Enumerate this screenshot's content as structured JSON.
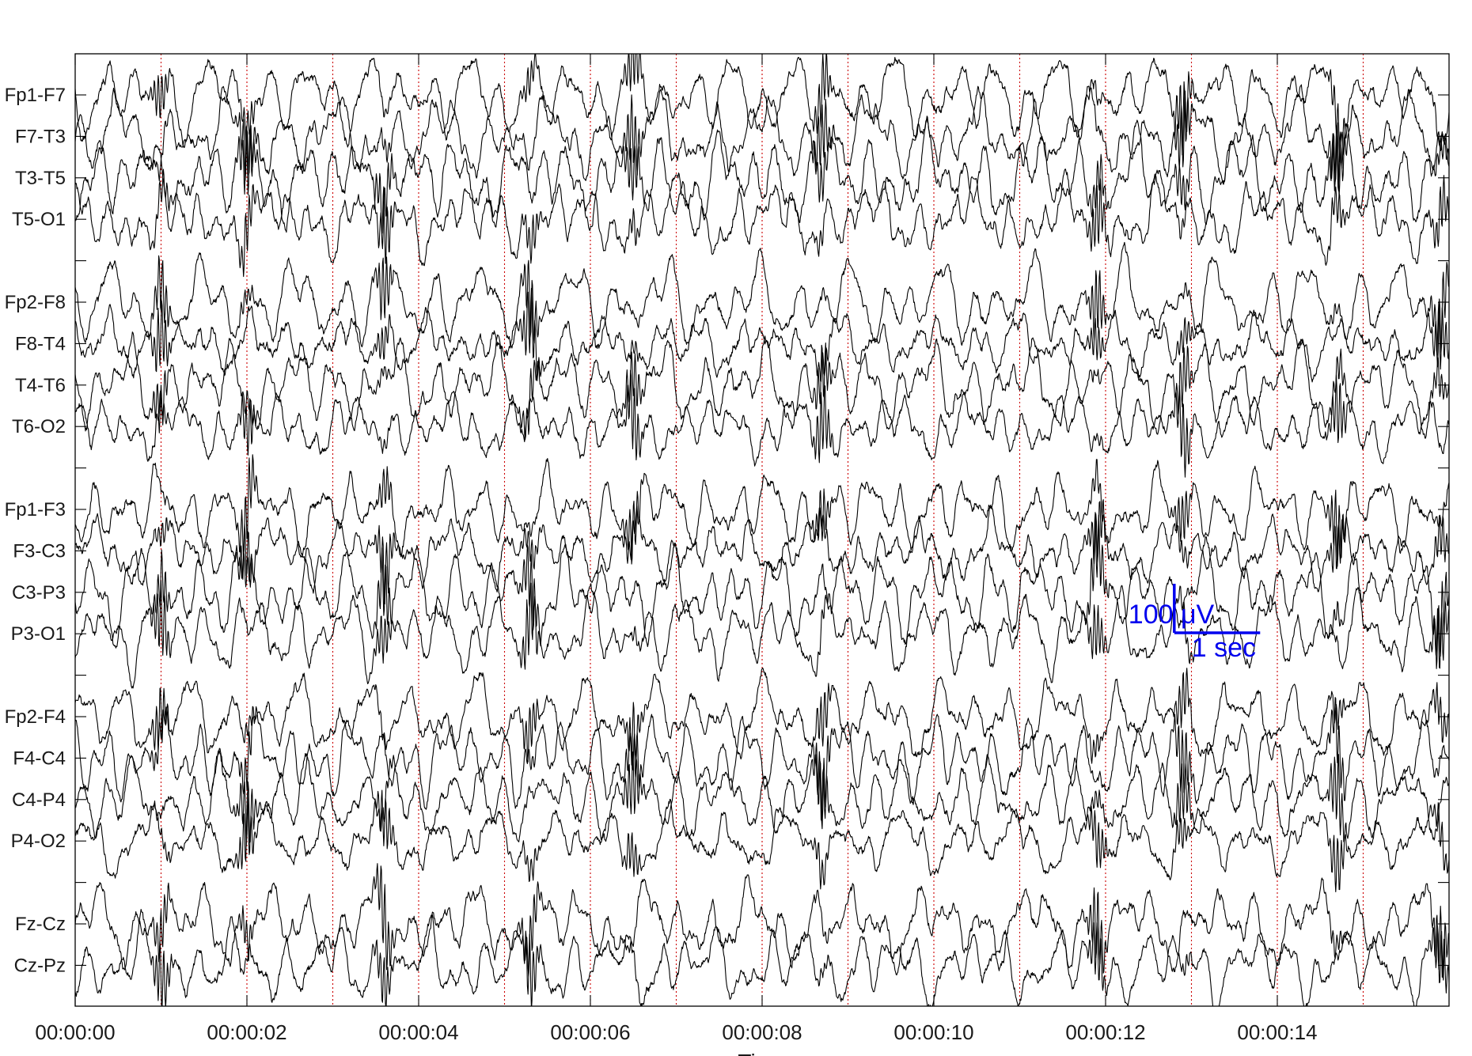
{
  "chart_data": {
    "type": "line",
    "title": "",
    "xlabel": "Time",
    "ylabel": "",
    "x_range_seconds": [
      0,
      16
    ],
    "x_tick_labels": [
      "00:00:00",
      "00:00:02",
      "00:00:04",
      "00:00:06",
      "00:00:08",
      "00:00:10",
      "00:00:12",
      "00:00:14"
    ],
    "x_tick_seconds": [
      0,
      2,
      4,
      6,
      8,
      10,
      12,
      14
    ],
    "second_marker_seconds": [
      1,
      2,
      3,
      4,
      5,
      6,
      7,
      8,
      9,
      10,
      11,
      12,
      13,
      14,
      15
    ],
    "channels": [
      {
        "name": "Fp1-F7",
        "group": 0
      },
      {
        "name": "F7-T3",
        "group": 0
      },
      {
        "name": "T3-T5",
        "group": 0
      },
      {
        "name": "T5-O1",
        "group": 0
      },
      {
        "name": "Fp2-F8",
        "group": 1
      },
      {
        "name": "F8-T4",
        "group": 1
      },
      {
        "name": "T4-T6",
        "group": 1
      },
      {
        "name": "T6-O2",
        "group": 1
      },
      {
        "name": "Fp1-F3",
        "group": 2
      },
      {
        "name": "F3-C3",
        "group": 2
      },
      {
        "name": "C3-P3",
        "group": 2
      },
      {
        "name": "P3-O1",
        "group": 2
      },
      {
        "name": "Fp2-F4",
        "group": 3
      },
      {
        "name": "F4-C4",
        "group": 3
      },
      {
        "name": "C4-P4",
        "group": 3
      },
      {
        "name": "P4-O2",
        "group": 3
      },
      {
        "name": "Fz-Cz",
        "group": 4
      },
      {
        "name": "Cz-Pz",
        "group": 4
      }
    ],
    "burst_seconds": [
      1.0,
      2.0,
      3.6,
      5.3,
      6.5,
      8.7,
      11.9,
      12.9,
      14.7,
      15.9
    ],
    "scale_bar": {
      "amplitude_label": "100 μV",
      "time_label": "1 sec",
      "amplitude_uV": 100,
      "time_seconds": 1,
      "anchor_seconds": 12.8,
      "color": "#0000ee"
    },
    "colors": {
      "trace": "#000000",
      "second_marker": "#cc0000",
      "axis": "#000000"
    },
    "grid": false,
    "legend": "none"
  }
}
